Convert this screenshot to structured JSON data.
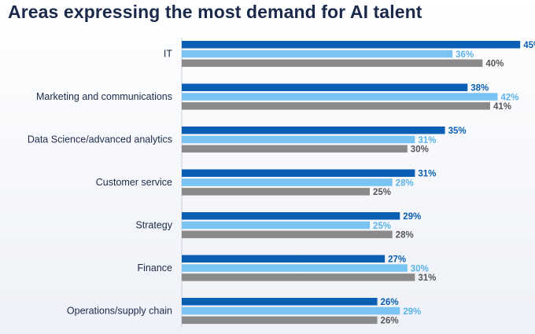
{
  "title": "Areas expressing the most demand for AI talent",
  "colors": {
    "series_dark": "#0a5fb4",
    "series_light": "#79c4f2",
    "series_grey": "#8a8a8a",
    "axis": "#c8ccd4",
    "title": "#1b2a4a"
  },
  "chart_data": {
    "type": "bar",
    "orientation": "horizontal",
    "title": "Areas expressing the most demand for AI talent",
    "xlabel": "",
    "ylabel": "",
    "unit": "%",
    "xlim": [
      0,
      45
    ],
    "grid": false,
    "legend": "none",
    "categories": [
      "IT",
      "Marketing and communications",
      "Data Science/advanced analytics",
      "Customer service",
      "Strategy",
      "Finance",
      "Operations/supply chain"
    ],
    "series": [
      {
        "values": [
          45,
          38,
          35,
          31,
          29,
          27,
          26
        ],
        "color": "#0a5fb4"
      },
      {
        "values": [
          36,
          42,
          31,
          28,
          25,
          30,
          29
        ],
        "color": "#79c4f2"
      },
      {
        "values": [
          40,
          41,
          30,
          25,
          28,
          31,
          26
        ],
        "color": "#8a8a8a"
      }
    ]
  }
}
